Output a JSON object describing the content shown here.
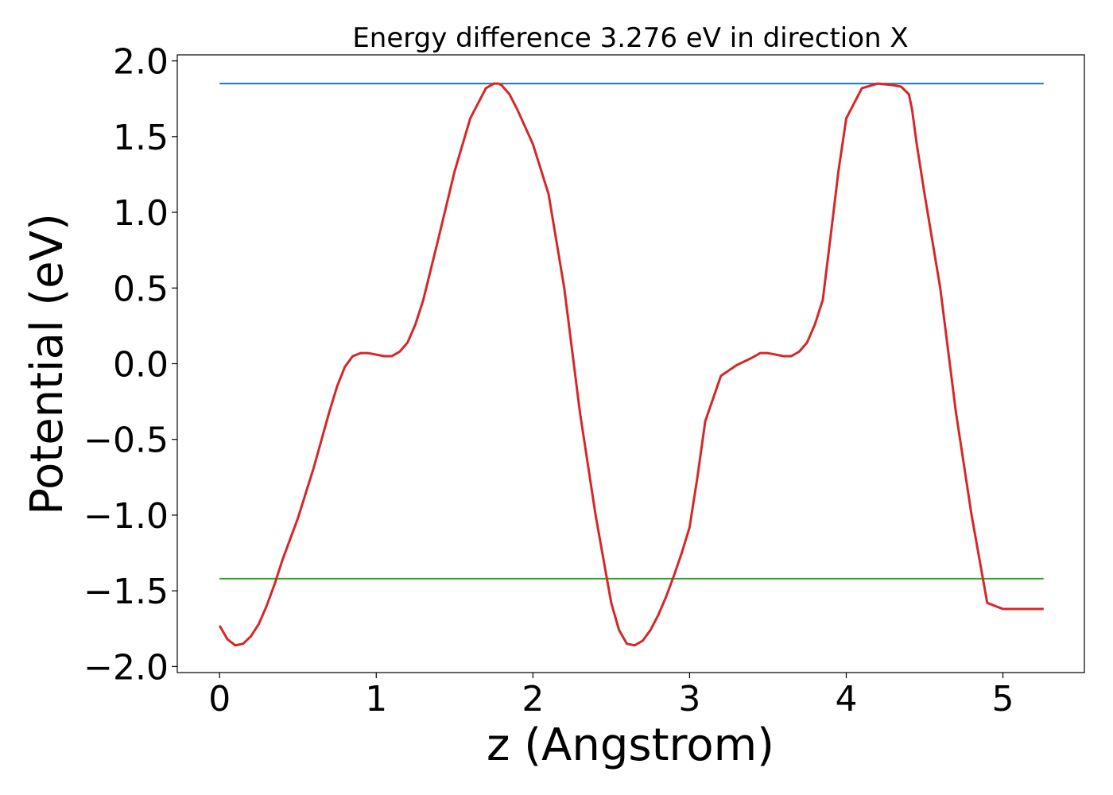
{
  "chart_data": {
    "type": "line",
    "title": "Energy difference 3.276 eV in direction X",
    "xlabel": "z (Angstrom)",
    "ylabel": "Potential (eV)",
    "xlim": [
      -0.27,
      5.52
    ],
    "ylim": [
      -2.04,
      2.04
    ],
    "xticks": [
      0,
      1,
      2,
      3,
      4,
      5
    ],
    "xtick_labels": [
      "0",
      "1",
      "2",
      "3",
      "4",
      "5"
    ],
    "yticks": [
      -2.0,
      -1.5,
      -1.0,
      -0.5,
      0.0,
      0.5,
      1.0,
      1.5,
      2.0
    ],
    "ytick_labels": [
      "−2.0",
      "−1.5",
      "−1.0",
      "−0.5",
      "0.0",
      "0.5",
      "1.0",
      "1.5",
      "2.0"
    ],
    "grid": false,
    "legend": "none",
    "series": [
      {
        "color": "#1f77b4",
        "x": [
          0.0,
          5.26
        ],
        "y": [
          1.85,
          1.85
        ]
      },
      {
        "color": "#2ca02c",
        "x": [
          0.0,
          5.26
        ],
        "y": [
          -1.42,
          -1.42
        ]
      },
      {
        "color": "#d62728",
        "x": [
          0.0,
          0.05,
          0.1,
          0.15,
          0.2,
          0.25,
          0.3,
          0.35,
          0.4,
          0.5,
          0.6,
          0.7,
          0.75,
          0.8,
          0.85,
          0.9,
          0.95,
          1.0,
          1.05,
          1.1,
          1.15,
          1.2,
          1.25,
          1.3,
          1.4,
          1.5,
          1.6,
          1.7,
          1.75,
          1.78,
          1.8,
          1.85,
          1.9,
          2.0,
          2.1,
          2.2,
          2.3,
          2.4,
          2.5,
          2.55,
          2.6,
          2.65,
          2.7,
          2.75,
          2.8,
          2.85,
          2.9,
          2.95,
          3.0,
          3.05,
          3.1,
          3.2,
          3.3,
          3.4,
          3.45,
          3.5,
          3.55,
          3.6,
          3.65,
          3.7,
          3.75,
          3.8,
          3.85,
          3.9,
          3.95,
          4.0,
          4.1,
          4.2,
          4.3,
          4.35,
          4.4,
          4.42,
          4.45,
          4.5,
          4.6,
          4.7,
          4.8,
          4.9,
          5.0,
          5.1,
          5.2,
          5.26
        ],
        "y": [
          -1.73,
          -1.82,
          -1.86,
          -1.85,
          -1.8,
          -1.72,
          -1.6,
          -1.46,
          -1.3,
          -1.02,
          -0.69,
          -0.32,
          -0.15,
          -0.02,
          0.05,
          0.07,
          0.07,
          0.06,
          0.05,
          0.05,
          0.08,
          0.14,
          0.26,
          0.42,
          0.84,
          1.27,
          1.62,
          1.82,
          1.85,
          1.85,
          1.84,
          1.78,
          1.68,
          1.45,
          1.12,
          0.5,
          -0.32,
          -1.0,
          -1.58,
          -1.76,
          -1.85,
          -1.86,
          -1.83,
          -1.76,
          -1.66,
          -1.54,
          -1.4,
          -1.25,
          -1.08,
          -0.75,
          -0.38,
          -0.08,
          -0.01,
          0.04,
          0.07,
          0.07,
          0.06,
          0.05,
          0.05,
          0.08,
          0.14,
          0.26,
          0.42,
          0.84,
          1.27,
          1.62,
          1.82,
          1.85,
          1.84,
          1.83,
          1.78,
          1.68,
          1.45,
          1.12,
          0.5,
          -0.32,
          -1.0,
          -1.58,
          -1.62,
          -1.62,
          -1.62,
          -1.62
        ]
      }
    ]
  }
}
